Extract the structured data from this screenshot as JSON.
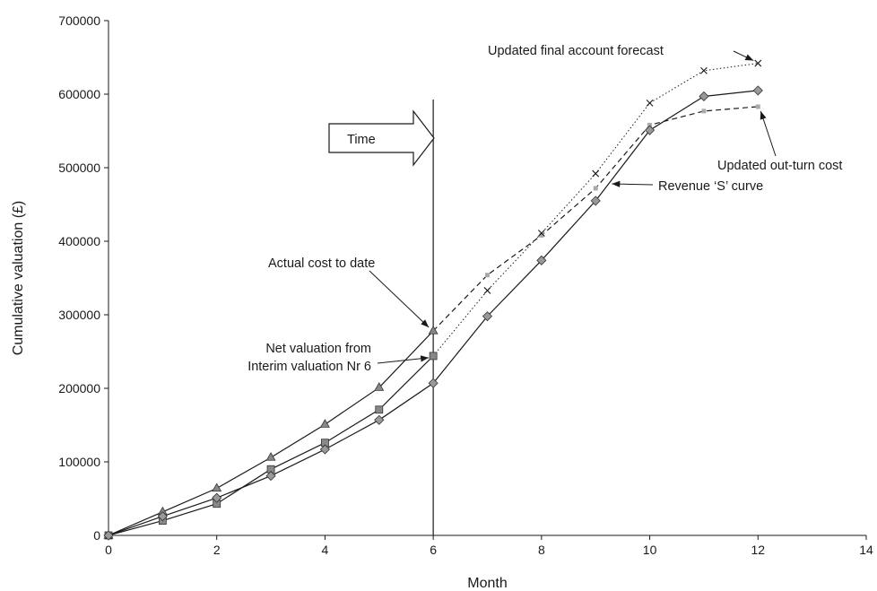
{
  "chart_data": {
    "type": "line",
    "title": "",
    "xlabel": "Month",
    "ylabel": "Cumulative valuation (£)",
    "xlim": [
      0,
      14
    ],
    "ylim": [
      0,
      700000
    ],
    "xticks": [
      0,
      2,
      4,
      6,
      8,
      10,
      12,
      14
    ],
    "yticks": [
      0,
      100000,
      200000,
      300000,
      400000,
      500000,
      600000,
      700000
    ],
    "grid": false,
    "legend": "none",
    "current_month": 6,
    "time_label": "Time",
    "series": [
      {
        "key": "actual_cost",
        "marker": "triangle",
        "line": "solid",
        "color": "#888888",
        "points": [
          [
            0,
            0
          ],
          [
            1,
            32000
          ],
          [
            2,
            64000
          ],
          [
            3,
            106000
          ],
          [
            4,
            151000
          ],
          [
            5,
            201000
          ],
          [
            6,
            278000
          ]
        ]
      },
      {
        "key": "net_valuation",
        "marker": "square",
        "line": "solid",
        "color": "#888888",
        "points": [
          [
            0,
            0
          ],
          [
            1,
            20000
          ],
          [
            2,
            43000
          ],
          [
            3,
            90000
          ],
          [
            4,
            126000
          ],
          [
            5,
            171000
          ],
          [
            6,
            244000
          ]
        ]
      },
      {
        "key": "revenue_s_curve",
        "marker": "diamond",
        "line": "solid",
        "color": "#999999",
        "points": [
          [
            0,
            0
          ],
          [
            1,
            26000
          ],
          [
            2,
            51000
          ],
          [
            3,
            81000
          ],
          [
            4,
            117000
          ],
          [
            5,
            157000
          ],
          [
            6,
            207000
          ],
          [
            7,
            298000
          ],
          [
            8,
            374000
          ],
          [
            9,
            455000
          ],
          [
            10,
            551000
          ],
          [
            11,
            597000
          ],
          [
            12,
            605000
          ]
        ]
      },
      {
        "key": "updated_final_account",
        "marker": "cross",
        "line": "dotted",
        "color": "#1a1a1a",
        "points": [
          [
            6,
            244000
          ],
          [
            7,
            333000
          ],
          [
            8,
            411000
          ],
          [
            9,
            492000
          ],
          [
            10,
            588000
          ],
          [
            11,
            632000
          ],
          [
            12,
            642000
          ]
        ]
      },
      {
        "key": "updated_outturn",
        "marker": "smallsquare",
        "line": "dashed",
        "color": "#aaaaaa",
        "points": [
          [
            6,
            278000
          ],
          [
            7,
            354000
          ],
          [
            8,
            408000
          ],
          [
            9,
            472000
          ],
          [
            10,
            558000
          ],
          [
            11,
            577000
          ],
          [
            12,
            583000
          ]
        ]
      }
    ],
    "annotations": [
      {
        "key": "final_forecast",
        "lines": [
          "Updated final account forecast"
        ],
        "x": 12,
        "y": 642000
      },
      {
        "key": "outturn",
        "lines": [
          "Updated out-turn cost"
        ],
        "x": 12,
        "y": 583000
      },
      {
        "key": "s_curve",
        "lines": [
          "Revenue ‘S’ curve"
        ],
        "x": 9.3,
        "y": 478000
      },
      {
        "key": "actual_cost",
        "lines": [
          "Actual cost to date"
        ],
        "x": 6,
        "y": 278000
      },
      {
        "key": "net_valuation",
        "lines": [
          "Net valuation from",
          "Interim valuation Nr 6"
        ],
        "x": 6,
        "y": 244000
      }
    ]
  }
}
